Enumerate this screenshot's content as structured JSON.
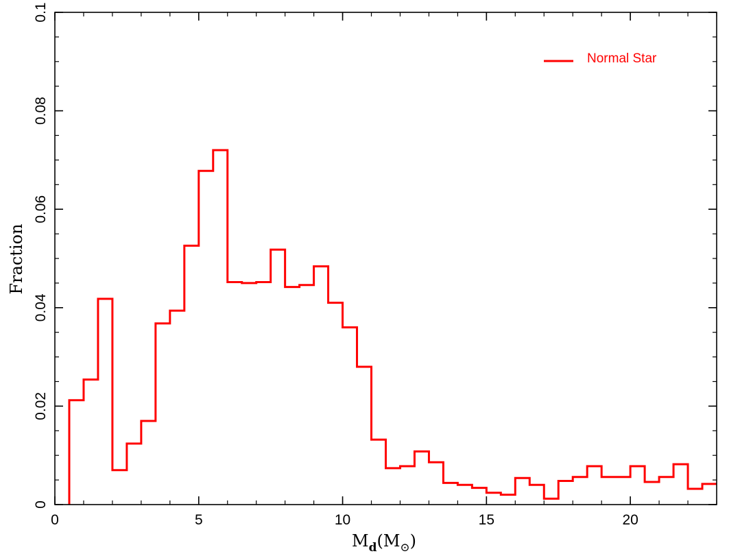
{
  "chart_data": {
    "type": "histogram-step",
    "xlabel": "M_d(M_⊙)",
    "ylabel": "Fraction",
    "xlim": [
      0,
      23
    ],
    "ylim": [
      0,
      0.1
    ],
    "x_ticks": [
      0,
      5,
      10,
      15,
      20
    ],
    "x_tick_labels": [
      "0",
      "5",
      "10",
      "15",
      "20"
    ],
    "y_ticks": [
      0,
      0.02,
      0.04,
      0.06,
      0.08,
      0.1
    ],
    "y_tick_labels": [
      "0",
      "0.02",
      "0.04",
      "0.06",
      "0.08",
      "0.1"
    ],
    "legend_position": "top-right",
    "series": [
      {
        "name": "Normal Star",
        "color": "#ff0000",
        "bin_edges": [
          0.5,
          1.0,
          1.5,
          2.0,
          2.5,
          3.0,
          3.5,
          4.0,
          4.5,
          5.0,
          5.5,
          6.0,
          6.5,
          7.0,
          7.5,
          8.0,
          8.5,
          9.0,
          9.5,
          10.0,
          10.5,
          11.0,
          11.5,
          12.0,
          12.5,
          13.0,
          13.5,
          14.0,
          14.5,
          15.0,
          15.5,
          16.0,
          16.5,
          17.0,
          17.5,
          18.0,
          18.5,
          19.0,
          19.5,
          20.0,
          20.5,
          21.0,
          21.5,
          22.0,
          22.5,
          23.0
        ],
        "values": [
          0.0212,
          0.0254,
          0.0418,
          0.007,
          0.0124,
          0.017,
          0.0368,
          0.0394,
          0.0526,
          0.0678,
          0.072,
          0.0452,
          0.045,
          0.0452,
          0.0518,
          0.0442,
          0.0446,
          0.0484,
          0.041,
          0.036,
          0.028,
          0.0132,
          0.0074,
          0.0078,
          0.0108,
          0.0086,
          0.0044,
          0.004,
          0.0034,
          0.0024,
          0.002,
          0.0054,
          0.004,
          0.0012,
          0.0048,
          0.0056,
          0.0078,
          0.0056,
          0.0056,
          0.0078,
          0.0046,
          0.0056,
          0.0082,
          0.0032,
          0.0042
        ]
      }
    ]
  }
}
